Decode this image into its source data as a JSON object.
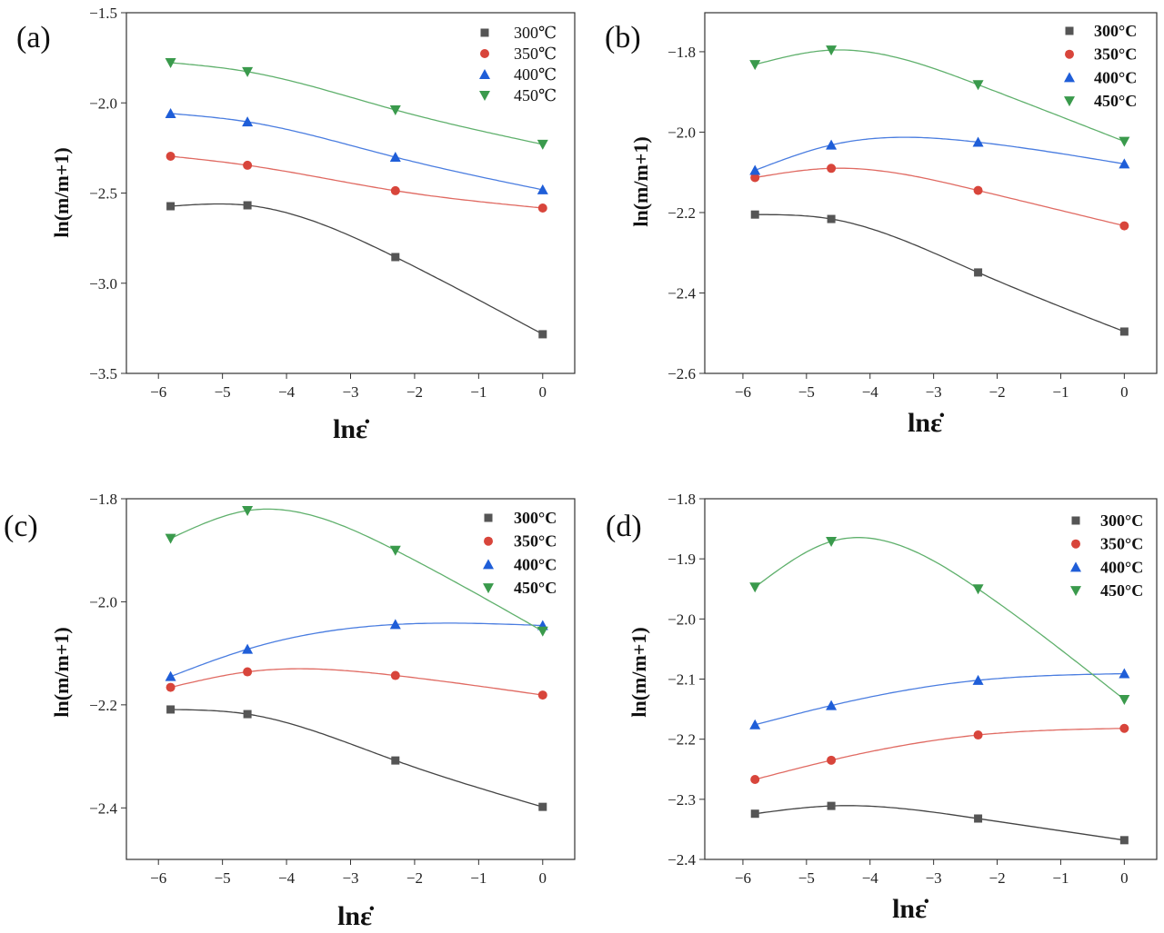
{
  "chart_data": [
    {
      "type": "line",
      "panel_label": "(a)",
      "xlabel": "lnε̇",
      "ylabel": "ln(m/m+1)",
      "xlim": [
        -6.5,
        0.5
      ],
      "ylim": [
        -3.5,
        -1.5
      ],
      "xticks": [
        -6,
        -5,
        -4,
        -3,
        -2,
        -1,
        0
      ],
      "yticks": [
        -3.5,
        -3.0,
        -2.5,
        -2.0,
        -1.5
      ],
      "ytick_decimals": 1,
      "legend_style": "plain",
      "legend_placement": "top-right",
      "x": [
        -5.81,
        -4.61,
        -2.3,
        0
      ],
      "series": [
        {
          "name": "300℃",
          "values": [
            -2.573,
            -2.568,
            -2.855,
            -3.283
          ]
        },
        {
          "name": "350℃",
          "values": [
            -2.296,
            -2.346,
            -2.487,
            -2.583
          ]
        },
        {
          "name": "400℃",
          "values": [
            -2.059,
            -2.105,
            -2.301,
            -2.482
          ]
        },
        {
          "name": "450℃",
          "values": [
            -1.777,
            -1.827,
            -2.039,
            -2.23
          ]
        }
      ]
    },
    {
      "type": "line",
      "panel_label": "(b)",
      "xlabel": "lnε̇",
      "ylabel": "ln(m/m+1)",
      "xlim": [
        -6.6,
        0.51
      ],
      "ylim": [
        -2.6,
        -1.703
      ],
      "xticks": [
        -6,
        -5,
        -4,
        -3,
        -2,
        -1,
        0
      ],
      "yticks": [
        -2.6,
        -2.4,
        -2.2,
        -2.0,
        -1.8
      ],
      "ytick_decimals": 1,
      "legend_style": "bold",
      "legend_placement": "top-right",
      "x": [
        -5.81,
        -4.61,
        -2.3,
        0
      ],
      "series": [
        {
          "name": "300°C",
          "values": [
            -2.205,
            -2.216,
            -2.349,
            -2.496
          ]
        },
        {
          "name": "350°C",
          "values": [
            -2.113,
            -2.09,
            -2.145,
            -2.233
          ]
        },
        {
          "name": "400°C",
          "values": [
            -2.095,
            -2.032,
            -2.025,
            -2.079
          ]
        },
        {
          "name": "450°C",
          "values": [
            -1.832,
            -1.796,
            -1.882,
            -2.023
          ]
        }
      ]
    },
    {
      "type": "line",
      "panel_label": "(c)",
      "xlabel": "lnε̇",
      "ylabel": "ln(m/m+1)",
      "xlim": [
        -6.5,
        0.5
      ],
      "ylim": [
        -2.5,
        -1.8
      ],
      "xticks": [
        -6,
        -5,
        -4,
        -3,
        -2,
        -1,
        0
      ],
      "yticks": [
        -2.4,
        -2.2,
        -2.0,
        -1.8
      ],
      "ytick_decimals": 1,
      "legend_style": "bold",
      "legend_placement": "top-right",
      "x": [
        -5.81,
        -4.61,
        -2.3,
        0
      ],
      "series": [
        {
          "name": "300°C",
          "values": [
            -2.209,
            -2.218,
            -2.308,
            -2.398
          ]
        },
        {
          "name": "350°C",
          "values": [
            -2.166,
            -2.136,
            -2.143,
            -2.181
          ]
        },
        {
          "name": "400°C",
          "values": [
            -2.145,
            -2.092,
            -2.044,
            -2.046
          ]
        },
        {
          "name": "450°C",
          "values": [
            -1.877,
            -1.823,
            -1.9,
            -2.057
          ]
        }
      ]
    },
    {
      "type": "line",
      "panel_label": "(d)",
      "xlabel": "lnε̇",
      "ylabel": "ln(m/m+1)",
      "xlim": [
        -6.6,
        0.51
      ],
      "ylim": [
        -2.4,
        -1.8
      ],
      "xticks": [
        -6,
        -5,
        -4,
        -3,
        -2,
        -1,
        0
      ],
      "yticks": [
        -2.4,
        -2.3,
        -2.2,
        -2.1,
        -2.0,
        -1.9,
        -1.8
      ],
      "ytick_decimals": 1,
      "legend_style": "bold",
      "legend_placement": "top-right",
      "x": [
        -5.81,
        -4.61,
        -2.3,
        0
      ],
      "series": [
        {
          "name": "300°C",
          "values": [
            -2.324,
            -2.311,
            -2.332,
            -2.368
          ]
        },
        {
          "name": "350°C",
          "values": [
            -2.267,
            -2.235,
            -2.193,
            -2.182
          ]
        },
        {
          "name": "400°C",
          "values": [
            -2.176,
            -2.144,
            -2.102,
            -2.091
          ]
        },
        {
          "name": "450°C",
          "values": [
            -1.947,
            -1.871,
            -1.95,
            -2.134
          ]
        }
      ]
    }
  ],
  "colors": {
    "marker": [
      "#555555",
      "#d8453b",
      "#1f5ed8",
      "#3a9a4c"
    ],
    "line": [
      "#444444",
      "#e06a62",
      "#4a7de0",
      "#5fb06c"
    ]
  },
  "markers": [
    "square",
    "circle",
    "triangle-up",
    "triangle-down"
  ]
}
